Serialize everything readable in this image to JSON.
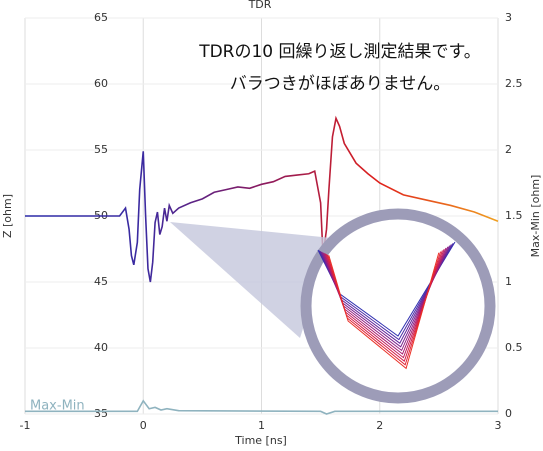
{
  "chart_data": {
    "type": "line",
    "title": "TDR",
    "xlabel": "Time [ns]",
    "ylabel": "Z [ohm]",
    "y2label": "Max-Min [ohm]",
    "annotations": [
      "TDRの10 回繰り返し測定結果です。",
      "バラつきがほぼありません。"
    ],
    "xlim": [
      -1,
      3
    ],
    "xticks": [
      -1,
      0,
      1,
      2,
      3
    ],
    "ylim": [
      35,
      65
    ],
    "yticks": [
      35,
      40,
      45,
      50,
      55,
      60,
      65
    ],
    "y2lim": [
      0,
      3
    ],
    "y2ticks": [
      0,
      0.5,
      1,
      1.5,
      2,
      2.5,
      3
    ],
    "grid": true,
    "series": [
      {
        "name": "Z",
        "colors": [
          "#2b2aa8",
          "#3b2aa0",
          "#8a1a60",
          "#e0201a",
          "#f0a020"
        ],
        "x": [
          -1,
          -0.2,
          -0.15,
          -0.12,
          -0.1,
          -0.08,
          -0.05,
          -0.03,
          0,
          0.02,
          0.04,
          0.06,
          0.08,
          0.1,
          0.12,
          0.14,
          0.16,
          0.18,
          0.2,
          0.22,
          0.25,
          0.3,
          0.4,
          0.5,
          0.6,
          0.7,
          0.8,
          0.9,
          1.0,
          1.1,
          1.2,
          1.3,
          1.4,
          1.45,
          1.5,
          1.52,
          1.55,
          1.57,
          1.6,
          1.63,
          1.66,
          1.7,
          1.8,
          1.9,
          2.0,
          2.2,
          2.4,
          2.6,
          2.8,
          3.0
        ],
        "values": [
          50,
          50,
          50.6,
          49,
          47,
          46.3,
          48,
          52,
          54.9,
          50,
          46,
          45,
          46.5,
          49.5,
          50.3,
          48.6,
          49.2,
          50.6,
          49.6,
          50.8,
          50.2,
          50.6,
          51,
          51.3,
          51.8,
          52,
          52.2,
          52.1,
          52.4,
          52.6,
          53,
          53.1,
          53.2,
          53.4,
          51,
          47,
          49,
          52,
          56,
          57.4,
          56.8,
          55.5,
          54,
          53.2,
          52.5,
          51.6,
          51.2,
          50.8,
          50.3,
          49.6
        ]
      },
      {
        "name": "Max-Min",
        "color": "#8fb3bf",
        "axis": "y2",
        "x": [
          -1,
          -0.05,
          0,
          0.05,
          0.1,
          0.15,
          0.2,
          0.3,
          1.5,
          1.55,
          1.62,
          3
        ],
        "values": [
          0.02,
          0.02,
          0.1,
          0.04,
          0.05,
          0.03,
          0.04,
          0.025,
          0.02,
          0.0,
          0.02,
          0.02
        ]
      }
    ]
  }
}
